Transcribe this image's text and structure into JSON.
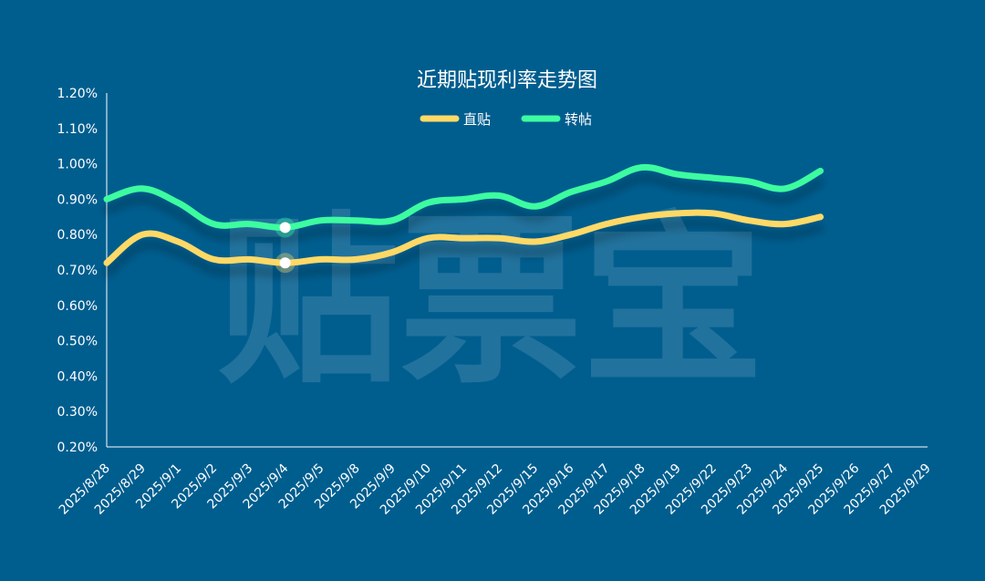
{
  "chart_data": {
    "type": "line",
    "title": "近期贴现利率走势图",
    "watermark": "贴票宝",
    "categories": [
      "2025/8/28",
      "2025/8/29",
      "2025/9/1",
      "2025/9/2",
      "2025/9/3",
      "2025/9/4",
      "2025/9/5",
      "2025/9/8",
      "2025/9/9",
      "2025/9/10",
      "2025/9/11",
      "2025/9/12",
      "2025/9/15",
      "2025/9/16",
      "2025/9/17",
      "2025/9/18",
      "2025/9/19",
      "2025/9/22",
      "2025/9/23",
      "2025/9/24",
      "2025/9/25",
      "2025/9/26",
      "2025/9/27",
      "2025/9/29"
    ],
    "y_ticks": [
      "0.20%",
      "0.30%",
      "0.40%",
      "0.50%",
      "0.60%",
      "0.70%",
      "0.80%",
      "0.90%",
      "1.00%",
      "1.10%",
      "1.20%"
    ],
    "ylim": [
      0.2,
      1.2
    ],
    "series": [
      {
        "name": "直贴",
        "color": "#ffd966",
        "values": [
          0.72,
          0.8,
          0.78,
          0.73,
          0.73,
          0.72,
          0.73,
          0.73,
          0.75,
          0.79,
          0.79,
          0.79,
          0.78,
          0.8,
          0.83,
          0.85,
          0.86,
          0.86,
          0.84,
          0.83,
          0.85,
          null,
          null,
          null
        ]
      },
      {
        "name": "转帖",
        "color": "#3dfca0",
        "values": [
          0.9,
          0.93,
          0.89,
          0.83,
          0.83,
          0.82,
          0.84,
          0.84,
          0.84,
          0.89,
          0.9,
          0.91,
          0.88,
          0.92,
          0.95,
          0.99,
          0.97,
          0.96,
          0.95,
          0.93,
          0.98,
          null,
          null,
          null
        ]
      }
    ],
    "highlight_index": 5,
    "legend_position": "top-center",
    "grid": false
  },
  "colors": {
    "background": "#005e8f",
    "axis": "#ffffff",
    "text": "#ffffff"
  }
}
